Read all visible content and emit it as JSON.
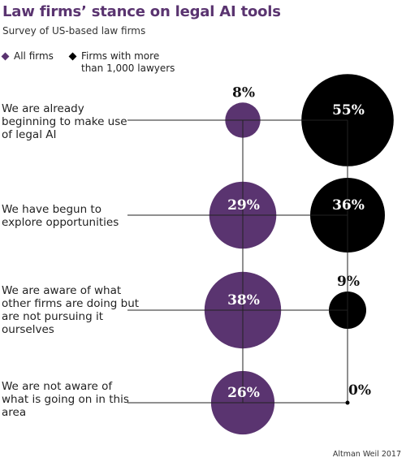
{
  "title": "Law firms’ stance on legal AI tools",
  "subtitle": "Survey of US-based law firms",
  "legend": [
    {
      "label": "All firms",
      "color": "#5a3470"
    },
    {
      "label": "Firms with more than 1,000 lawyers",
      "color": "#000000"
    }
  ],
  "source": "Altman Weil 2017",
  "chart_data": {
    "type": "bubble",
    "title": "Law firms’ stance on legal AI tools",
    "subtitle": "Survey of US-based law firms",
    "categories": [
      "We are already beginning to make use of legal AI",
      "We have begun to explore opportunities",
      "We are aware of what other firms are doing but are not pursuing it ourselves",
      "We are not aware of what is going on in this area"
    ],
    "series": [
      {
        "name": "All firms",
        "color": "#5a3470",
        "values": [
          8,
          29,
          38,
          26
        ],
        "labels": [
          "8%",
          "29%",
          "38%",
          "26%"
        ]
      },
      {
        "name": "Firms with more than 1,000 lawyers",
        "color": "#000000",
        "values": [
          55,
          36,
          9,
          0
        ],
        "labels": [
          "55%",
          "36%",
          "9%",
          "0%"
        ]
      }
    ],
    "unit": "%",
    "legend_position": "top-left",
    "grid": false
  }
}
